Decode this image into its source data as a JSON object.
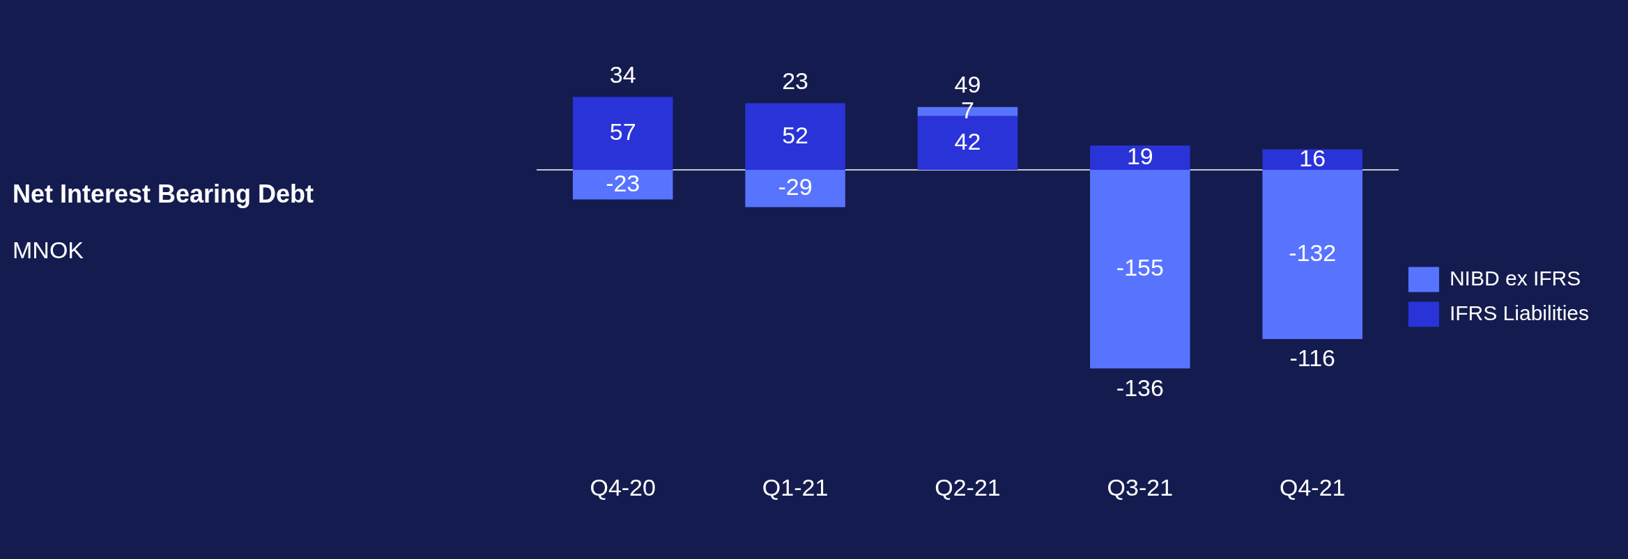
{
  "chart_data": {
    "type": "bar",
    "title": "Net Interest Bearing Debt",
    "subtitle": "MNOK",
    "categories": [
      "Q4-20",
      "Q1-21",
      "Q2-21",
      "Q3-21",
      "Q4-21"
    ],
    "stacked": true,
    "series": [
      {
        "name": "IFRS Liabilities",
        "color": "#2a33d8",
        "values": [
          57,
          52,
          42,
          19,
          16
        ]
      },
      {
        "name": "NIBD ex IFRS",
        "color": "#5874ff",
        "values": [
          -23,
          -29,
          7,
          -155,
          -132
        ]
      }
    ],
    "totals": [
      "34",
      "23",
      "49",
      "-136",
      "-116"
    ],
    "data_labels": true,
    "grid": false,
    "legend": "right",
    "ref_lines": [
      {
        "axis": "y",
        "value": 0,
        "color": "#ffffff"
      }
    ]
  }
}
